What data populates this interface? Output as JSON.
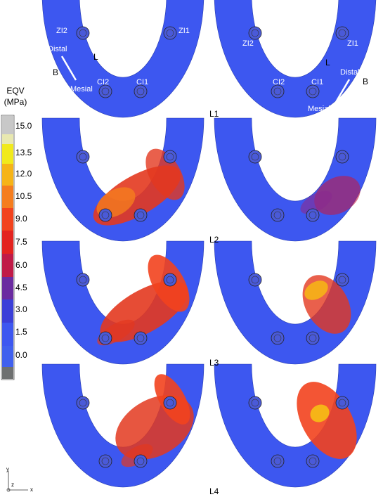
{
  "legend": {
    "title": [
      "EQV",
      "(MPa)"
    ],
    "ticks": [
      "15.0",
      "13.5",
      "12.0",
      "10.5",
      "9.0",
      "7.5",
      "6.0",
      "4.5",
      "3.0",
      "1.5",
      "0.0"
    ]
  },
  "panels": [
    "L1",
    "L2",
    "L3",
    "L4"
  ],
  "annotations": {
    "left": {
      "zi2": "ZI2",
      "zi1": "ZI1",
      "ci2": "CI2",
      "ci1": "CI1",
      "lingual": "L",
      "buccal": "B",
      "distal": "Distal",
      "mesial": "Mesial"
    },
    "right": {
      "zi2": "ZI2",
      "zi1": "ZI1",
      "ci2": "CI2",
      "ci1": "CI1",
      "lingual": "L",
      "buccal": "B",
      "distal": "Distal",
      "mesial": "Mesial"
    }
  },
  "axes": [
    "y",
    "z",
    "x"
  ]
}
